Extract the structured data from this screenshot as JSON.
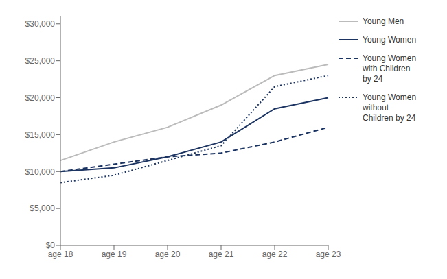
{
  "chart_data": {
    "type": "line",
    "categories": [
      "age 18",
      "age 19",
      "age 20",
      "age 21",
      "age 22",
      "age 23"
    ],
    "series": [
      {
        "name": "Young Men",
        "color": "#bbbbbb",
        "line_style": "solid",
        "values": [
          11500,
          14000,
          16000,
          19000,
          23000,
          24500
        ]
      },
      {
        "name": "Young Women",
        "color": "#1c3461",
        "line_style": "solid",
        "values": [
          10000,
          10500,
          12000,
          14000,
          18500,
          20000
        ]
      },
      {
        "name": "Young Women\nwith Children\nby 24",
        "color": "#1c3461",
        "line_style": "dashed",
        "values": [
          10000,
          11000,
          12000,
          12500,
          14000,
          16000
        ]
      },
      {
        "name": "Young Women\nwithout\nChildren by 24",
        "color": "#1c3461",
        "line_style": "dotted",
        "values": [
          8500,
          9500,
          11500,
          13500,
          21500,
          23000
        ]
      }
    ],
    "ylim": [
      0,
      31000
    ],
    "yticks": [
      {
        "value": 0,
        "label": "$0"
      },
      {
        "value": 5000,
        "label": "$5,000"
      },
      {
        "value": 10000,
        "label": "$10,000"
      },
      {
        "value": 15000,
        "label": "$15,000"
      },
      {
        "value": 20000,
        "label": "$20,000"
      },
      {
        "value": 25000,
        "label": "$25,000"
      },
      {
        "value": 30000,
        "label": "$30,000"
      }
    ],
    "grid": false,
    "legend": "right"
  }
}
